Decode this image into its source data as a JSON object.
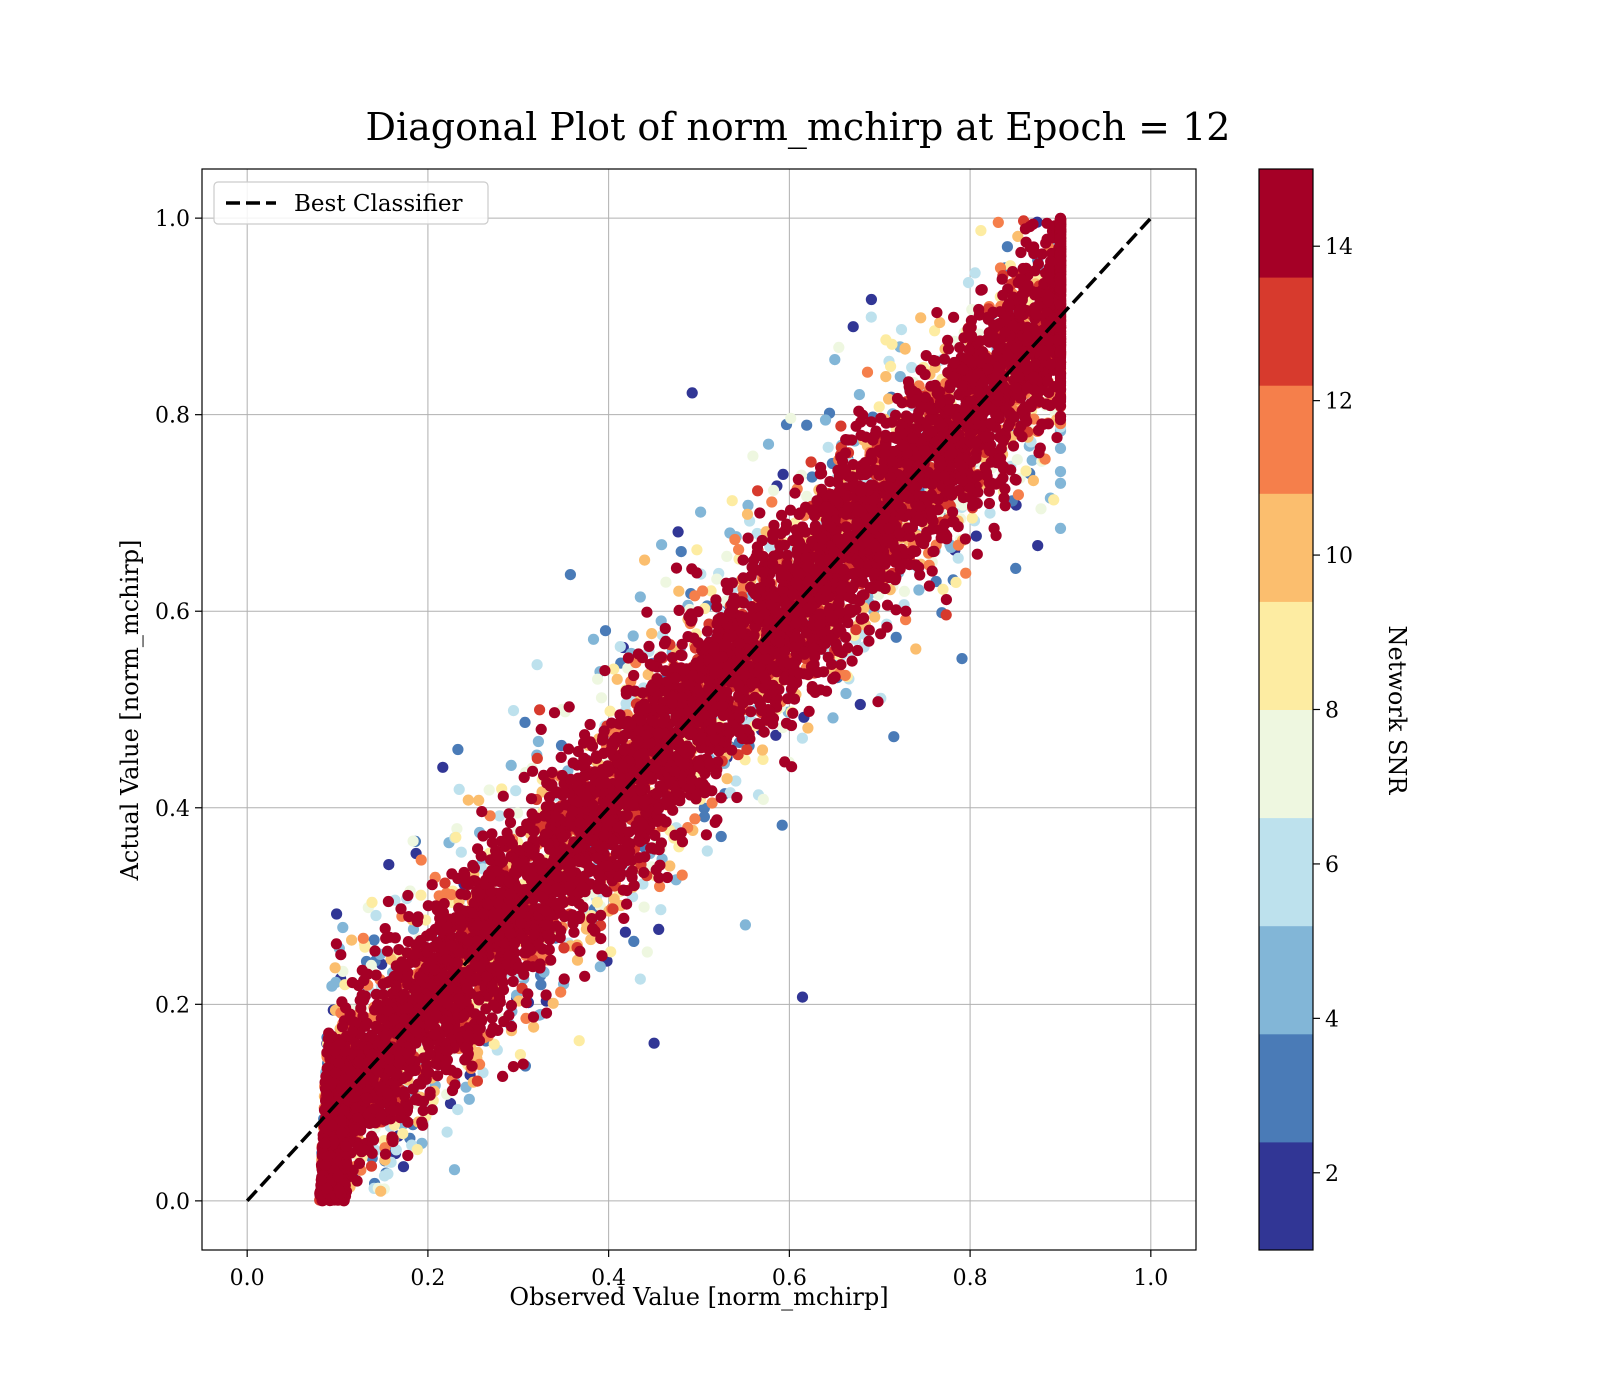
{
  "chart_data": {
    "type": "scatter",
    "title": "Diagonal Plot of norm_mchirp at Epoch = 12",
    "xlabel": "Observed Value [norm_mchirp]",
    "ylabel": "Actual Value [norm_mchirp]",
    "xlim": [
      -0.05,
      1.05
    ],
    "ylim": [
      -0.05,
      1.05
    ],
    "xticks": [
      "0.0",
      "0.2",
      "0.4",
      "0.6",
      "0.8",
      "1.0"
    ],
    "yticks": [
      "0.0",
      "0.2",
      "0.4",
      "0.6",
      "0.8",
      "1.0"
    ],
    "grid": true,
    "legend": {
      "placement": "upper-left",
      "entries": [
        "Best Classifier"
      ]
    },
    "reference_line": {
      "label": "Best Classifier",
      "x": [
        0,
        1
      ],
      "y": [
        0,
        1
      ],
      "style": "dashed",
      "color": "#000000"
    },
    "scatter_description": {
      "x_range_observed": [
        0.08,
        0.9
      ],
      "y_range_actual": [
        0.0,
        1.0
      ],
      "high_snr_band_halfwidth": 0.12,
      "low_snr_spread": "points with low SNR deviate further from the diagonal"
    },
    "colorbar": {
      "label": "Network SNR",
      "range": [
        1,
        15
      ],
      "ticks": [
        "2",
        "4",
        "6",
        "8",
        "10",
        "12",
        "14"
      ],
      "tick_values": [
        2,
        4,
        6,
        8,
        10,
        12,
        14
      ],
      "colors": [
        "#313695",
        "#4575b4",
        "#74add1",
        "#abd9e9",
        "#e0f3f8",
        "#fee090",
        "#fdae61",
        "#f46d43",
        "#d73027",
        "#a50026"
      ],
      "segment_colors": [
        "#313695",
        "#4a7bb7",
        "#82b6d7",
        "#bde1ed",
        "#eef7e0",
        "#fdeca2",
        "#fbbe6e",
        "#f57f4b",
        "#d73a2d",
        "#a50026"
      ]
    }
  }
}
